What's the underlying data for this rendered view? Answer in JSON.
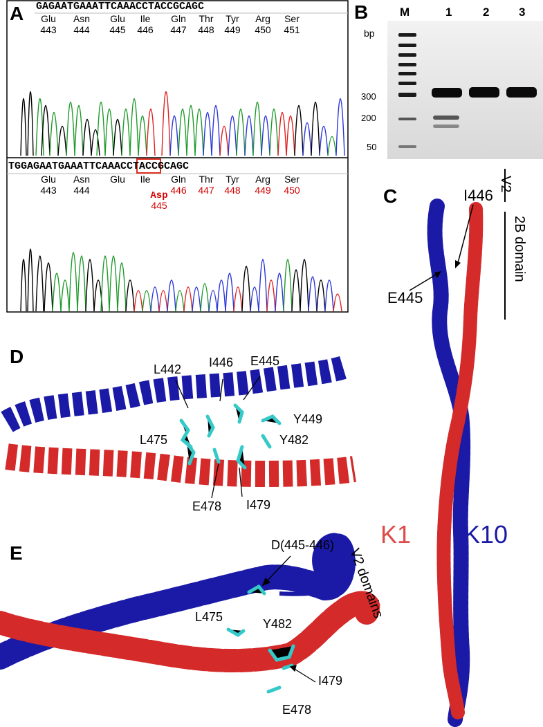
{
  "panels": {
    "A": "A",
    "B": "B",
    "C": "C",
    "D": "D",
    "E": "E"
  },
  "panelA": {
    "top_sequence": "GAGAATGAAATTCAAACCTACCGCAGC",
    "bottom_sequence": "TGGAGAATGAAATTCAAACCTACCGCAGC",
    "top_residues": [
      {
        "aa": "Glu",
        "num": "443"
      },
      {
        "aa": "Asn",
        "num": "444"
      },
      {
        "aa": "Glu",
        "num": "445"
      },
      {
        "aa": "Ile",
        "num": "446"
      },
      {
        "aa": "Gln",
        "num": "447"
      },
      {
        "aa": "Thr",
        "num": "448"
      },
      {
        "aa": "Tyr",
        "num": "449"
      },
      {
        "aa": "Arg",
        "num": "450"
      },
      {
        "aa": "Ser",
        "num": "451"
      }
    ],
    "bottom_residues": [
      {
        "aa": "Glu",
        "num": "443"
      },
      {
        "aa": "Asn",
        "num": "444"
      },
      {
        "aa": "Glu",
        "num": ""
      },
      {
        "aa": "Ile",
        "num": ""
      },
      {
        "aa": "Gln",
        "num": "446"
      },
      {
        "aa": "Thr",
        "num": "447"
      },
      {
        "aa": "Tyr",
        "num": "448"
      },
      {
        "aa": "Arg",
        "num": "449"
      },
      {
        "aa": "Ser",
        "num": "450"
      }
    ],
    "mutation_label": "Asp",
    "mutation_number": "445"
  },
  "panelB": {
    "unit": "bp",
    "lanes": [
      "M",
      "1",
      "2",
      "3"
    ],
    "markers": [
      "300",
      "200",
      "50"
    ]
  },
  "panelC": {
    "bracket_v2": "V2",
    "bracket_2b": "2B domain",
    "label_i446": "I446",
    "label_e445": "E445",
    "chain_k1": "K1",
    "chain_k10": "K10"
  },
  "panelD": {
    "labels": [
      "L442",
      "I446",
      "E445",
      "Y449",
      "L475",
      "Y482",
      "E478",
      "I479"
    ]
  },
  "panelE": {
    "labels": [
      "D(445-446)",
      "V2 domains",
      "L475",
      "Y482",
      "I479",
      "E478"
    ]
  },
  "colors": {
    "k1_red": "#d42a2a",
    "k10_blue": "#1a1aa6",
    "trace_black": "#000000",
    "trace_green": "#1f9a2a",
    "trace_blue": "#2a36d8",
    "trace_red": "#e02020",
    "highlight_red": "#d40000",
    "residue_cyan": "#36c9c9"
  }
}
